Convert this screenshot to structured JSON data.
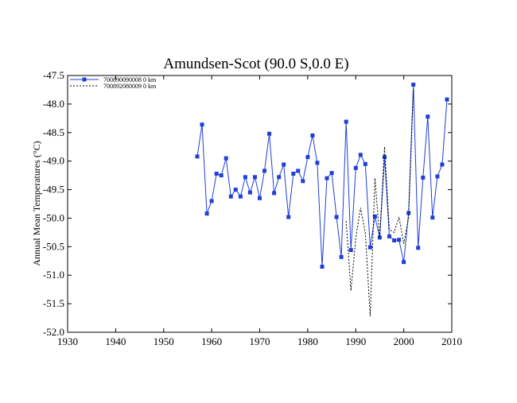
{
  "chart_data": {
    "type": "line",
    "title": "Amundsen-Scot (90.0 S,0.0 E)",
    "xlabel": "",
    "ylabel": "Annual Mean Temperatures (°C)",
    "xlim": [
      1930,
      2010
    ],
    "ylim": [
      -52.0,
      -47.5
    ],
    "xticks": [
      1930,
      1940,
      1950,
      1960,
      1970,
      1980,
      1990,
      2000,
      2010
    ],
    "yticks": [
      -47.5,
      -48.0,
      -48.5,
      -49.0,
      -49.5,
      -50.0,
      -50.5,
      -51.0,
      -51.5,
      -52.0
    ],
    "ytick_labels": [
      "-47.5",
      "-48.0",
      "-48.5",
      "-49.0",
      "-49.5",
      "-50.0",
      "-50.5",
      "-51.0",
      "-51.5",
      "-52.0"
    ],
    "grid": false,
    "legend": {
      "position": "top-left"
    },
    "series": [
      {
        "name": "700890090008  0 km",
        "color": "#1f3fd6",
        "style": "solid",
        "marker": "square",
        "x": [
          1957,
          1958,
          1959,
          1960,
          1961,
          1962,
          1963,
          1964,
          1965,
          1966,
          1967,
          1968,
          1969,
          1970,
          1971,
          1972,
          1973,
          1974,
          1975,
          1976,
          1977,
          1978,
          1979,
          1980,
          1981,
          1982,
          1983,
          1984,
          1985,
          1986,
          1987,
          1988,
          1989,
          1990,
          1991,
          1992,
          1993,
          1994,
          1995,
          1996,
          1997,
          1998,
          1999,
          2000,
          2001,
          2002,
          2003,
          2004,
          2005,
          2006,
          2007,
          2008,
          2009
        ],
        "y": [
          -48.92,
          -48.36,
          -49.92,
          -49.7,
          -49.22,
          -49.25,
          -48.95,
          -49.62,
          -49.5,
          -49.62,
          -49.28,
          -49.55,
          -49.28,
          -49.65,
          -49.17,
          -48.52,
          -49.56,
          -49.28,
          -49.06,
          -49.98,
          -49.22,
          -49.17,
          -49.35,
          -48.93,
          -48.55,
          -49.03,
          -50.85,
          -49.3,
          -49.21,
          -49.98,
          -50.68,
          -48.31,
          -50.56,
          -49.12,
          -48.89,
          -49.05,
          -50.51,
          -49.97,
          -50.34,
          -48.93,
          -50.32,
          -50.39,
          -50.38,
          -50.77,
          -49.91,
          -47.66,
          -50.52,
          -49.29,
          -48.22,
          -49.99,
          -49.27,
          -49.06,
          -47.92
        ]
      },
      {
        "name": "700892080009  0 km",
        "color": "#000000",
        "style": "dashed",
        "marker": "none",
        "x": [
          1988,
          1989,
          1990,
          1991,
          1992,
          1993,
          1994,
          1995,
          1996,
          1997,
          1998,
          1999,
          2000,
          2001,
          2002
        ],
        "y": [
          -50.05,
          -51.27,
          -50.35,
          -49.82,
          -50.25,
          -51.72,
          -49.3,
          -50.35,
          -48.75,
          -50.2,
          -50.25,
          -49.98,
          -50.45,
          -50.0,
          -47.75
        ]
      }
    ]
  }
}
